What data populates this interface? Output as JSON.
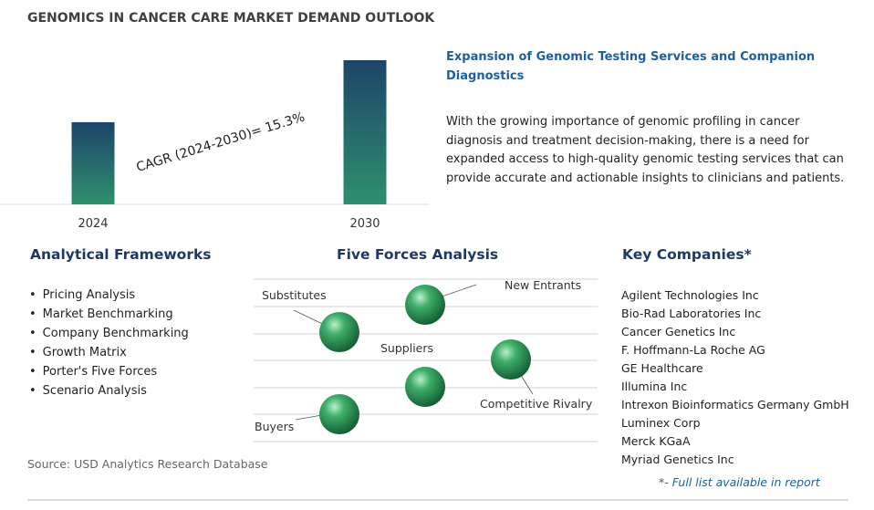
{
  "title": "GENOMICS IN CANCER CARE MARKET DEMAND OUTLOOK",
  "chart_data": {
    "type": "bar",
    "categories": [
      "2024",
      "2030"
    ],
    "values": [
      57,
      100
    ],
    "ylim": [
      0,
      100
    ]
  },
  "cagr_label": "CAGR (2024-2030)=  15.3%",
  "highlight": {
    "heading": "Expansion of Genomic Testing Services and Companion Diagnostics",
    "text": "With the growing importance of genomic profiling in cancer diagnosis and treatment decision-making, there is a need for expanded access to high-quality genomic testing services that can provide accurate and actionable insights to clinicians and patients."
  },
  "frameworks": {
    "title": "Analytical Frameworks",
    "items": [
      "Pricing Analysis",
      "Market Benchmarking",
      "Company Benchmarking",
      "Growth Matrix",
      "Porter's Five Forces",
      "Scenario Analysis"
    ]
  },
  "five_forces": {
    "title": "Five Forces Analysis",
    "forces": [
      "Substitutes",
      "New Entrants",
      "Suppliers",
      "Competitive Rivalry",
      "Buyers"
    ]
  },
  "companies": {
    "title": "Key Companies*",
    "items": [
      "Agilent Technologies Inc",
      "Bio-Rad Laboratories Inc",
      "Cancer Genetics Inc",
      "F. Hoffmann-La Roche AG",
      "GE Healthcare",
      "Illumina Inc",
      "Intrexon Bioinformatics Germany GmbH",
      "Luminex Corp",
      "Merck KGaA",
      "Myriad Genetics Inc"
    ],
    "note": "*- Full list available in report"
  },
  "source": "Source: USD Analytics Research Database"
}
